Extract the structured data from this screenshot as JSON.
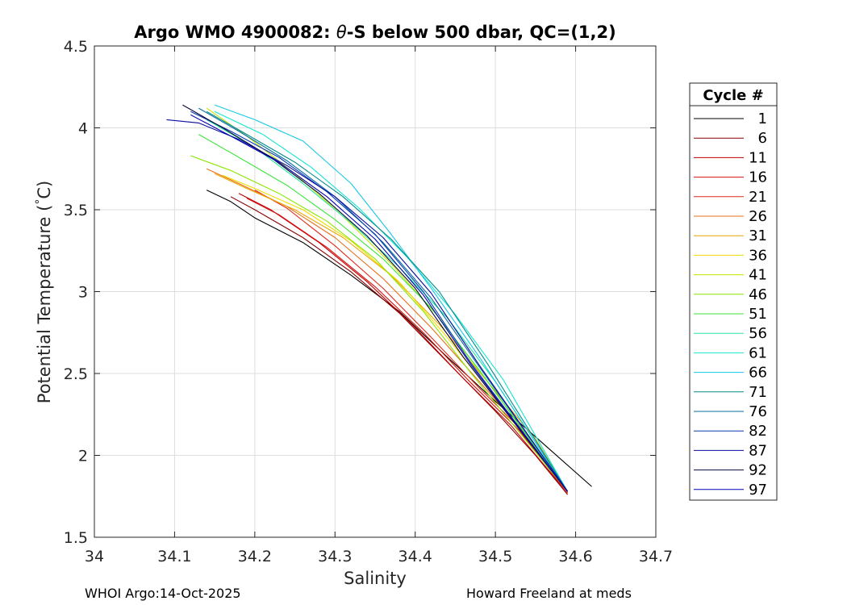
{
  "chart_data": {
    "type": "line",
    "title_prefix": "Argo WMO 4900082: ",
    "title_theta": "θ",
    "title_suffix": "-S below 500 dbar,  QC=(1,2)",
    "xlabel": "Salinity",
    "ylabel_prefix": "Potential Temperature (",
    "ylabel_degree": "°",
    "ylabel_suffix": "C)",
    "xlim": [
      34.0,
      34.7
    ],
    "ylim": [
      1.5,
      4.5
    ],
    "xticks": [
      34.0,
      34.1,
      34.2,
      34.3,
      34.4,
      34.5,
      34.6,
      34.7
    ],
    "xtick_labels": [
      "34",
      "34.1",
      "34.2",
      "34.3",
      "34.4",
      "34.5",
      "34.6",
      "34.7"
    ],
    "yticks": [
      1.5,
      2.0,
      2.5,
      3.0,
      3.5,
      4.0,
      4.5
    ],
    "ytick_labels": [
      "1.5",
      "2",
      "2.5",
      "3",
      "3.5",
      "4",
      "4.5"
    ],
    "grid": true,
    "legend": {
      "title": "Cycle #",
      "placement": "right outside",
      "entries": [
        {
          "label": "1",
          "color": "#000000"
        },
        {
          "label": "6",
          "color": "#8b0000"
        },
        {
          "label": "11",
          "color": "#c00000"
        },
        {
          "label": "16",
          "color": "#d61010"
        },
        {
          "label": "21",
          "color": "#e02a1a"
        },
        {
          "label": "26",
          "color": "#e8701a"
        },
        {
          "label": "31",
          "color": "#e8a800"
        },
        {
          "label": "36",
          "color": "#f0dc00"
        },
        {
          "label": "41",
          "color": "#c8e600"
        },
        {
          "label": "46",
          "color": "#8ce600"
        },
        {
          "label": "51",
          "color": "#3ce63c"
        },
        {
          "label": "56",
          "color": "#28e6a0"
        },
        {
          "label": "61",
          "color": "#14e6d2"
        },
        {
          "label": "66",
          "color": "#14c8e6"
        },
        {
          "label": "71",
          "color": "#008c8c"
        },
        {
          "label": "76",
          "color": "#0a6ea0"
        },
        {
          "label": "82",
          "color": "#0a3cb4"
        },
        {
          "label": "87",
          "color": "#0a0aa0"
        },
        {
          "label": "92",
          "color": "#0a0a3c"
        },
        {
          "label": "97",
          "color": "#0000b4"
        }
      ]
    },
    "series": [
      {
        "name": "1",
        "color": "#000000",
        "x": [
          34.14,
          34.17,
          34.2,
          34.26,
          34.32,
          34.38,
          34.44,
          34.5,
          34.56,
          34.62
        ],
        "y": [
          3.62,
          3.55,
          3.45,
          3.3,
          3.1,
          2.88,
          2.6,
          2.33,
          2.07,
          1.81
        ]
      },
      {
        "name": "6",
        "color": "#8b0000",
        "x": [
          34.17,
          34.2,
          34.26,
          34.32,
          34.38,
          34.44,
          34.5,
          34.55,
          34.59
        ],
        "y": [
          3.58,
          3.5,
          3.33,
          3.12,
          2.87,
          2.57,
          2.27,
          2.0,
          1.76
        ]
      },
      {
        "name": "11",
        "color": "#c00000",
        "x": [
          34.18,
          34.22,
          34.28,
          34.34,
          34.4,
          34.46,
          34.52,
          34.59
        ],
        "y": [
          3.6,
          3.5,
          3.3,
          3.06,
          2.78,
          2.47,
          2.18,
          1.77
        ]
      },
      {
        "name": "16",
        "color": "#d61010",
        "x": [
          34.19,
          34.23,
          34.29,
          34.35,
          34.41,
          34.47,
          34.53,
          34.59
        ],
        "y": [
          3.57,
          3.47,
          3.27,
          3.03,
          2.75,
          2.44,
          2.15,
          1.77
        ]
      },
      {
        "name": "21",
        "color": "#e02a1a",
        "x": [
          34.2,
          34.24,
          34.3,
          34.36,
          34.42,
          34.48,
          34.54,
          34.59
        ],
        "y": [
          3.62,
          3.51,
          3.28,
          3.02,
          2.72,
          2.41,
          2.12,
          1.77
        ]
      },
      {
        "name": "26",
        "color": "#e8701a",
        "x": [
          34.14,
          34.18,
          34.24,
          34.3,
          34.36,
          34.42,
          34.48,
          34.54,
          34.59
        ],
        "y": [
          3.75,
          3.66,
          3.52,
          3.33,
          3.08,
          2.78,
          2.45,
          2.12,
          1.78
        ]
      },
      {
        "name": "31",
        "color": "#e8a800",
        "x": [
          34.15,
          34.19,
          34.25,
          34.31,
          34.37,
          34.43,
          34.49,
          34.55,
          34.59
        ],
        "y": [
          3.72,
          3.63,
          3.5,
          3.33,
          3.1,
          2.8,
          2.45,
          2.1,
          1.78
        ]
      },
      {
        "name": "36",
        "color": "#f0dc00",
        "x": [
          34.16,
          34.2,
          34.26,
          34.32,
          34.38,
          34.44,
          34.5,
          34.59
        ],
        "y": [
          3.71,
          3.63,
          3.5,
          3.31,
          3.06,
          2.72,
          2.35,
          1.78
        ]
      },
      {
        "name": "41",
        "color": "#c8e600",
        "x": [
          34.14,
          34.19,
          34.25,
          34.31,
          34.37,
          34.43,
          34.49,
          34.59
        ],
        "y": [
          4.12,
          3.95,
          3.72,
          3.46,
          3.17,
          2.84,
          2.45,
          1.78
        ]
      },
      {
        "name": "46",
        "color": "#8ce600",
        "x": [
          34.12,
          34.17,
          34.23,
          34.29,
          34.35,
          34.41,
          34.47,
          34.59
        ],
        "y": [
          3.83,
          3.74,
          3.6,
          3.43,
          3.2,
          2.88,
          2.5,
          1.78
        ]
      },
      {
        "name": "51",
        "color": "#3ce63c",
        "x": [
          34.13,
          34.18,
          34.24,
          34.3,
          34.36,
          34.42,
          34.48,
          34.59
        ],
        "y": [
          3.96,
          3.82,
          3.65,
          3.44,
          3.2,
          2.9,
          2.52,
          1.78
        ]
      },
      {
        "name": "56",
        "color": "#28e6a0",
        "x": [
          34.14,
          34.2,
          34.26,
          34.32,
          34.38,
          34.44,
          34.5,
          34.59
        ],
        "y": [
          4.05,
          3.88,
          3.66,
          3.42,
          3.15,
          2.84,
          2.45,
          1.78
        ]
      },
      {
        "name": "61",
        "color": "#14e6d2",
        "x": [
          34.15,
          34.21,
          34.27,
          34.33,
          34.39,
          34.45,
          34.51,
          34.59
        ],
        "y": [
          4.1,
          3.96,
          3.76,
          3.51,
          3.21,
          2.86,
          2.46,
          1.78
        ]
      },
      {
        "name": "66",
        "color": "#14c8e6",
        "x": [
          34.15,
          34.2,
          34.26,
          34.32,
          34.37,
          34.42,
          34.48,
          34.59
        ],
        "y": [
          4.14,
          4.05,
          3.92,
          3.66,
          3.35,
          3.02,
          2.6,
          1.78
        ]
      },
      {
        "name": "71",
        "color": "#008c8c",
        "x": [
          34.14,
          34.19,
          34.25,
          34.31,
          34.37,
          34.43,
          34.49,
          34.59
        ],
        "y": [
          4.1,
          3.96,
          3.79,
          3.58,
          3.32,
          3.0,
          2.56,
          1.78
        ]
      },
      {
        "name": "76",
        "color": "#0a6ea0",
        "x": [
          34.13,
          34.18,
          34.24,
          34.3,
          34.36,
          34.42,
          34.48,
          34.59
        ],
        "y": [
          4.12,
          3.98,
          3.8,
          3.58,
          3.3,
          2.96,
          2.54,
          1.78
        ]
      },
      {
        "name": "82",
        "color": "#0a3cb4",
        "x": [
          34.12,
          34.17,
          34.23,
          34.29,
          34.35,
          34.41,
          34.47,
          34.59
        ],
        "y": [
          4.1,
          3.98,
          3.82,
          3.61,
          3.35,
          3.0,
          2.56,
          1.78
        ]
      },
      {
        "name": "87",
        "color": "#0a0aa0",
        "x": [
          34.09,
          34.13,
          34.18,
          34.24,
          34.3,
          34.36,
          34.42,
          34.48,
          34.59
        ],
        "y": [
          4.05,
          4.03,
          3.93,
          3.77,
          3.58,
          3.33,
          2.99,
          2.55,
          1.78
        ]
      },
      {
        "name": "92",
        "color": "#0a0a3c",
        "x": [
          34.11,
          34.16,
          34.22,
          34.28,
          34.34,
          34.4,
          34.46,
          34.59
        ],
        "y": [
          4.14,
          4.0,
          3.82,
          3.6,
          3.34,
          3.02,
          2.6,
          1.78
        ]
      },
      {
        "name": "97",
        "color": "#0000b4",
        "x": [
          34.12,
          34.17,
          34.23,
          34.29,
          34.35,
          34.41,
          34.47,
          34.59
        ],
        "y": [
          4.08,
          3.95,
          3.79,
          3.58,
          3.32,
          2.98,
          2.55,
          1.78
        ]
      }
    ]
  },
  "footer": {
    "left": "WHOI Argo:14-Oct-2025",
    "right": "Howard Freeland at meds"
  }
}
